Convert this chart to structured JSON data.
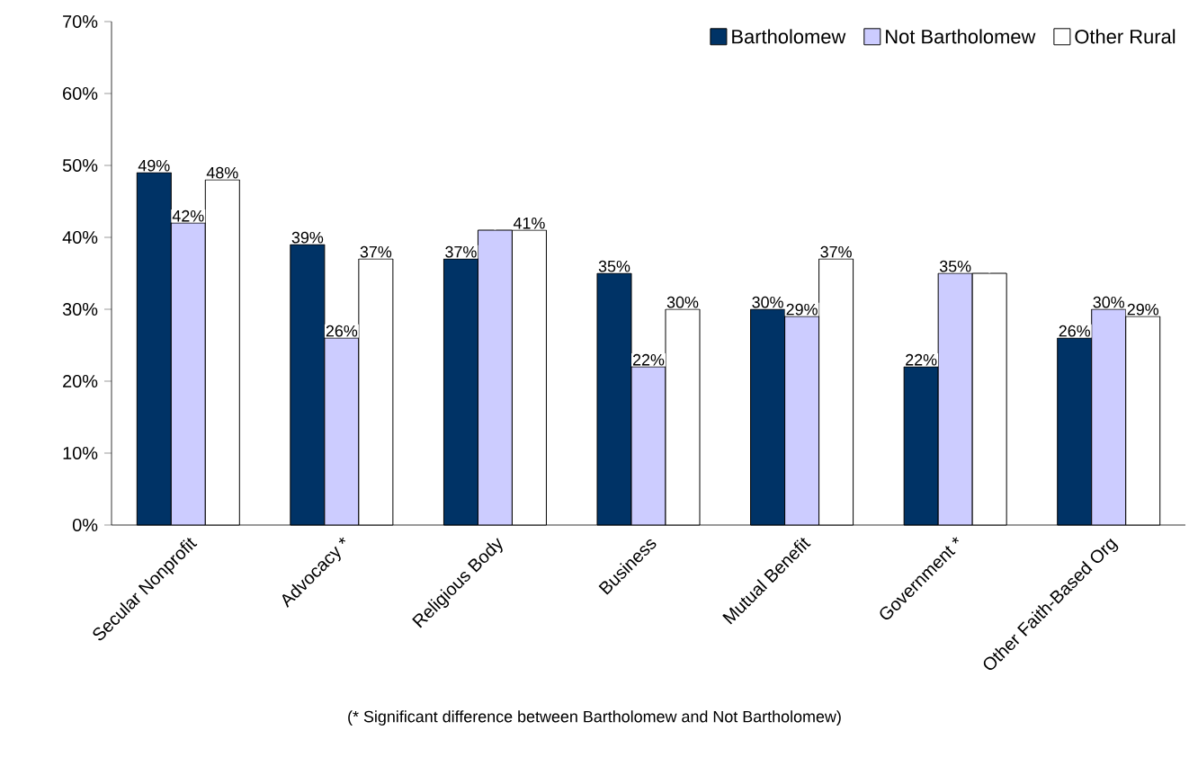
{
  "chart_data": {
    "type": "bar",
    "categories": [
      "Secular Nonprofit",
      "Advocacy *",
      "Religious Body",
      "Business",
      "Mutual Benefit",
      "Government *",
      "Other Faith-Based Org"
    ],
    "series": [
      {
        "name": "Bartholomew",
        "color": "#003366",
        "values": [
          49,
          39,
          37,
          35,
          30,
          22,
          26
        ],
        "value_labels": [
          "49%",
          "39%",
          "37%",
          "35%",
          "30%",
          "22%",
          "26%"
        ]
      },
      {
        "name": "Not Bartholomew",
        "color": "#ccccff",
        "values": [
          42,
          26,
          41,
          22,
          29,
          35,
          30
        ],
        "value_labels": [
          "42%",
          "26%",
          null,
          "22%",
          "29%",
          "35%",
          "30%"
        ]
      },
      {
        "name": "Other Rural",
        "color": "#ffffff",
        "values": [
          48,
          37,
          41,
          30,
          37,
          35,
          29
        ],
        "value_labels": [
          "48%",
          "37%",
          "41%",
          "30%",
          "37%",
          null,
          "29%"
        ]
      }
    ],
    "ylim": [
      0,
      70
    ],
    "yticks": [
      {
        "value": 0,
        "label": "0%"
      },
      {
        "value": 10,
        "label": "10%"
      },
      {
        "value": 20,
        "label": "20%"
      },
      {
        "value": 30,
        "label": "30%"
      },
      {
        "value": 40,
        "label": "40%"
      },
      {
        "value": 50,
        "label": "50%"
      },
      {
        "value": 60,
        "label": "60%"
      },
      {
        "value": 70,
        "label": "70%"
      }
    ],
    "grid": false,
    "legend": "top right",
    "annotations": [
      "(* Significant difference between Bartholomew and Not Bartholomew)"
    ]
  }
}
